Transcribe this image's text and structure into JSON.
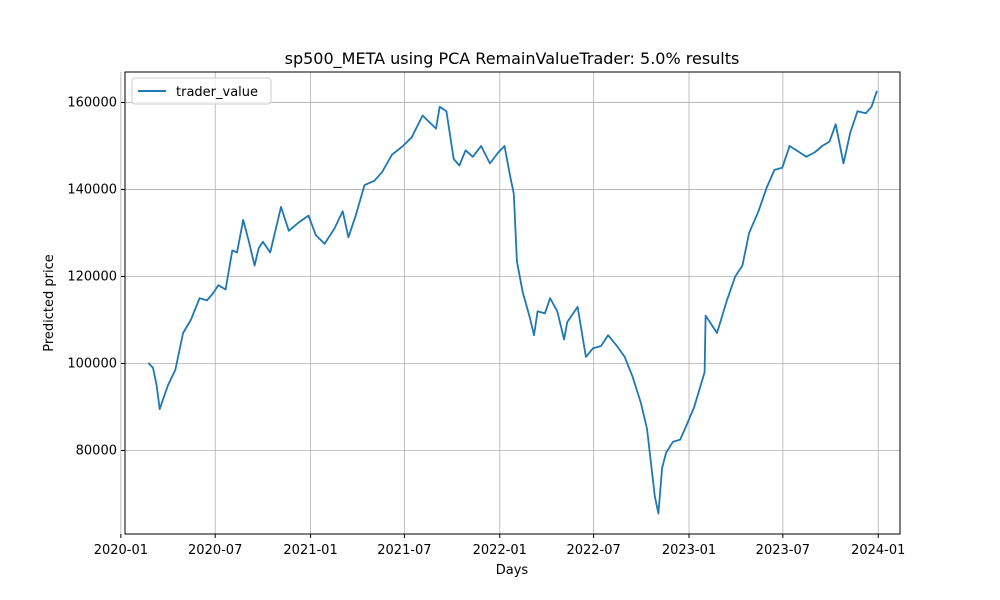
{
  "chart_data": {
    "type": "line",
    "title": "sp500_META using PCA RemainValueTrader: 5.0% results",
    "xlabel": "Days",
    "ylabel": "Predicted price",
    "xlim": [
      "2020-01-09",
      "2024-02-12"
    ],
    "ylim": [
      60800,
      167000
    ],
    "grid": true,
    "legend_position": "top-left",
    "x_ticks": [
      "2020-01",
      "2020-07",
      "2021-01",
      "2021-07",
      "2022-01",
      "2022-07",
      "2023-01",
      "2023-07",
      "2024-01"
    ],
    "y_ticks": [
      80000,
      100000,
      120000,
      140000,
      160000
    ],
    "y_tick_labels": [
      "80000",
      "100000",
      "120000",
      "140000",
      "160000"
    ],
    "series": [
      {
        "name": "trader_value",
        "color": "#1f77b4",
        "x": [
          "2020-02-24",
          "2020-03-03",
          "2020-03-10",
          "2020-03-16",
          "2020-03-23",
          "2020-04-01",
          "2020-04-15",
          "2020-04-30",
          "2020-05-15",
          "2020-06-01",
          "2020-06-15",
          "2020-06-26",
          "2020-07-07",
          "2020-07-21",
          "2020-08-03",
          "2020-08-12",
          "2020-08-24",
          "2020-09-04",
          "2020-09-15",
          "2020-09-23",
          "2020-10-01",
          "2020-10-15",
          "2020-10-28",
          "2020-11-05",
          "2020-11-20",
          "2020-12-10",
          "2020-12-28",
          "2021-01-11",
          "2021-01-28",
          "2021-02-16",
          "2021-03-04",
          "2021-03-15",
          "2021-03-29",
          "2021-04-15",
          "2021-05-04",
          "2021-05-19",
          "2021-06-07",
          "2021-06-28",
          "2021-07-15",
          "2021-08-05",
          "2021-08-31",
          "2021-09-07",
          "2021-09-20",
          "2021-10-04",
          "2021-10-15",
          "2021-10-27",
          "2021-11-10",
          "2021-11-26",
          "2021-12-13",
          "2021-12-29",
          "2022-01-10",
          "2022-01-21",
          "2022-01-28",
          "2022-02-03",
          "2022-02-14",
          "2022-02-28",
          "2022-03-08",
          "2022-03-15",
          "2022-03-29",
          "2022-04-08",
          "2022-04-22",
          "2022-05-05",
          "2022-05-11",
          "2022-05-31",
          "2022-06-16",
          "2022-06-30",
          "2022-07-15",
          "2022-07-29",
          "2022-08-15",
          "2022-08-30",
          "2022-09-14",
          "2022-09-30",
          "2022-10-12",
          "2022-10-27",
          "2022-11-03",
          "2022-11-10",
          "2022-11-18",
          "2022-12-01",
          "2022-12-15",
          "2022-12-28",
          "2023-01-11",
          "2023-01-31",
          "2023-02-02",
          "2023-02-24",
          "2023-03-15",
          "2023-03-31",
          "2023-04-14",
          "2023-04-27",
          "2023-05-15",
          "2023-05-31",
          "2023-06-15",
          "2023-06-30",
          "2023-07-14",
          "2023-07-27",
          "2023-08-15",
          "2023-08-31",
          "2023-09-15",
          "2023-09-29",
          "2023-10-11",
          "2023-10-26",
          "2023-11-08",
          "2023-11-22",
          "2023-12-08",
          "2023-12-19",
          "2023-12-29"
        ],
        "y": [
          100000,
          99000,
          95000,
          89500,
          92000,
          95000,
          98500,
          107000,
          110000,
          115000,
          114500,
          116000,
          118000,
          117000,
          126000,
          125500,
          133000,
          128000,
          122500,
          126500,
          128000,
          125500,
          132000,
          136000,
          130500,
          132500,
          134000,
          129500,
          127500,
          131000,
          135000,
          129000,
          134000,
          141000,
          142000,
          144000,
          148000,
          150000,
          152000,
          157000,
          154000,
          159000,
          158000,
          147000,
          145500,
          149000,
          147500,
          150000,
          146000,
          148500,
          150000,
          143000,
          139000,
          123500,
          116500,
          110500,
          106500,
          112000,
          111500,
          115000,
          112000,
          105500,
          109500,
          113000,
          101500,
          103500,
          104000,
          106500,
          104000,
          101500,
          97000,
          91000,
          85000,
          69500,
          65500,
          76000,
          79500,
          82000,
          82500,
          86000,
          90000,
          98000,
          111000,
          107000,
          114500,
          120000,
          122500,
          130000,
          135000,
          140500,
          144500,
          145000,
          150000,
          149000,
          147500,
          148500,
          150000,
          151000,
          155000,
          146000,
          153000,
          158000,
          157500,
          159000,
          162500
        ]
      }
    ]
  }
}
